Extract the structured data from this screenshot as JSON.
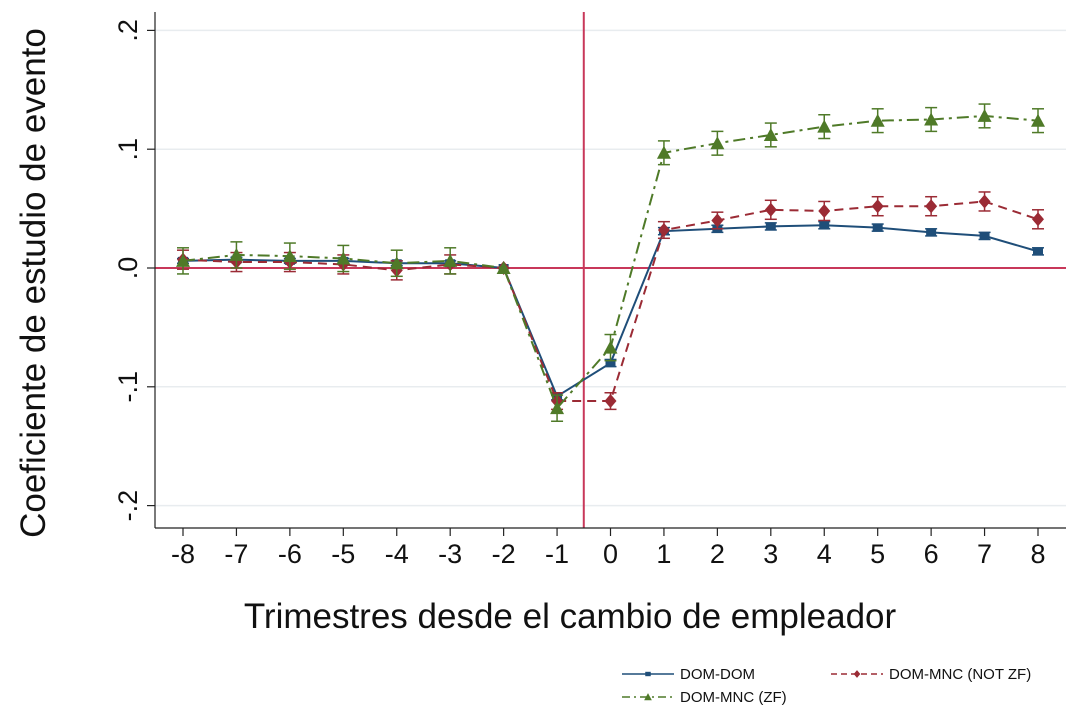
{
  "chart_data": {
    "type": "line",
    "title": "",
    "xlabel": "Trimestres desde el cambio de empleador",
    "ylabel": "Coeficiente de estudio de evento",
    "x": [
      -8,
      -7,
      -6,
      -5,
      -4,
      -3,
      -2,
      -1,
      0,
      1,
      2,
      3,
      4,
      5,
      6,
      7,
      8
    ],
    "x_ticks": [
      "-8",
      "-7",
      "-6",
      "-5",
      "-4",
      "-3",
      "-2",
      "-1",
      "0",
      "1",
      "2",
      "3",
      "4",
      "5",
      "6",
      "7",
      "8"
    ],
    "y_ticks": [
      {
        "value": 0.2,
        "label": ".2"
      },
      {
        "value": 0.1,
        "label": ".1"
      },
      {
        "value": 0.0,
        "label": ".0"
      },
      {
        "value": -0.1,
        "label": "-.1"
      },
      {
        "value": -0.2,
        "label": "-.2"
      }
    ],
    "xlim": [
      -8.4,
      8.4
    ],
    "ylim": [
      -0.215,
      0.22
    ],
    "vline_x": -0.5,
    "hline_y": 0,
    "grid": true,
    "legend_position": "bottom-right",
    "series": [
      {
        "name": "DOM-DOM",
        "color": "#1f4e79",
        "marker": "square",
        "dash": "solid",
        "values": [
          0.006,
          0.007,
          0.006,
          0.006,
          0.004,
          0.004,
          0.0,
          -0.108,
          -0.08,
          0.031,
          0.033,
          0.035,
          0.036,
          0.034,
          0.03,
          0.027,
          0.014
        ],
        "ci": [
          0.002,
          0.002,
          0.002,
          0.002,
          0.002,
          0.002,
          0.0,
          0.003,
          0.003,
          0.003,
          0.003,
          0.003,
          0.003,
          0.003,
          0.003,
          0.003,
          0.003
        ]
      },
      {
        "name": "DOM-MNC (NOT ZF)",
        "color": "#9b2b35",
        "marker": "diamond",
        "dash": "dash",
        "values": [
          0.007,
          0.005,
          0.005,
          0.003,
          -0.002,
          0.003,
          0.0,
          -0.112,
          -0.112,
          0.032,
          0.04,
          0.049,
          0.048,
          0.052,
          0.052,
          0.056,
          0.041
        ],
        "ci": [
          0.008,
          0.008,
          0.008,
          0.008,
          0.008,
          0.008,
          0.0,
          0.007,
          0.007,
          0.007,
          0.007,
          0.008,
          0.008,
          0.008,
          0.008,
          0.008,
          0.008
        ]
      },
      {
        "name": "DOM-MNC (ZF)",
        "color": "#4f7a28",
        "marker": "triangle",
        "dash": "dashdot",
        "values": [
          0.006,
          0.011,
          0.01,
          0.008,
          0.004,
          0.006,
          0.0,
          -0.118,
          -0.067,
          0.097,
          0.105,
          0.112,
          0.119,
          0.124,
          0.125,
          0.128,
          0.124
        ],
        "ci": [
          0.011,
          0.011,
          0.011,
          0.011,
          0.011,
          0.011,
          0.0,
          0.011,
          0.011,
          0.01,
          0.01,
          0.01,
          0.01,
          0.01,
          0.01,
          0.01,
          0.01
        ]
      }
    ]
  }
}
